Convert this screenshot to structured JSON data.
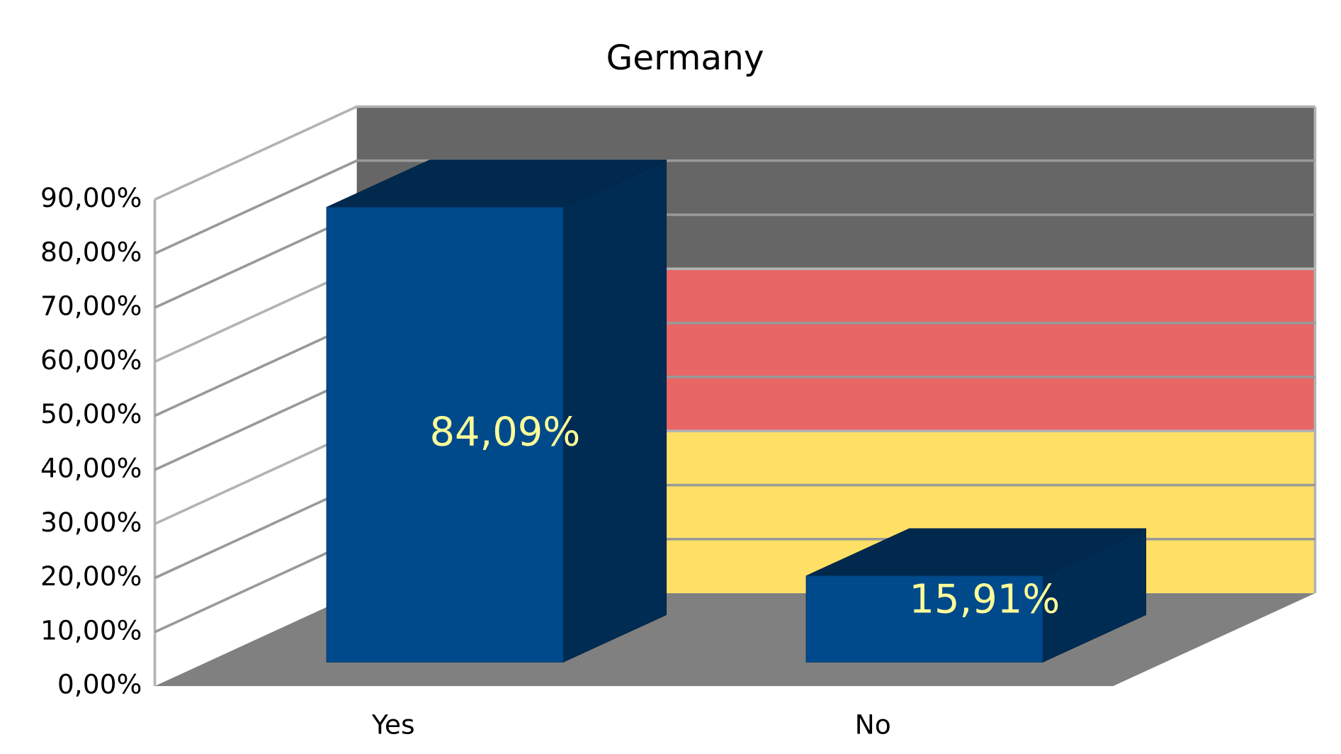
{
  "chart_data": {
    "type": "bar3d",
    "title": "Germany",
    "categories": [
      "Yes",
      "No"
    ],
    "values": [
      84.09,
      15.91
    ],
    "value_labels": [
      "84,09%",
      "15,91%"
    ],
    "color": "#004a8c",
    "ylim": [
      0,
      90
    ],
    "yticks": [
      {
        "value": 0,
        "label": "0,00%"
      },
      {
        "value": 10,
        "label": "10,00%"
      },
      {
        "value": 20,
        "label": "20,00%"
      },
      {
        "value": 30,
        "label": "30,00%"
      },
      {
        "value": 40,
        "label": "40,00%"
      },
      {
        "value": 50,
        "label": "50,00%"
      },
      {
        "value": 60,
        "label": "60,00%"
      },
      {
        "value": 70,
        "label": "70,00%"
      },
      {
        "value": 80,
        "label": "80,00%"
      },
      {
        "value": 90,
        "label": "90,00%"
      }
    ],
    "grid": true
  }
}
